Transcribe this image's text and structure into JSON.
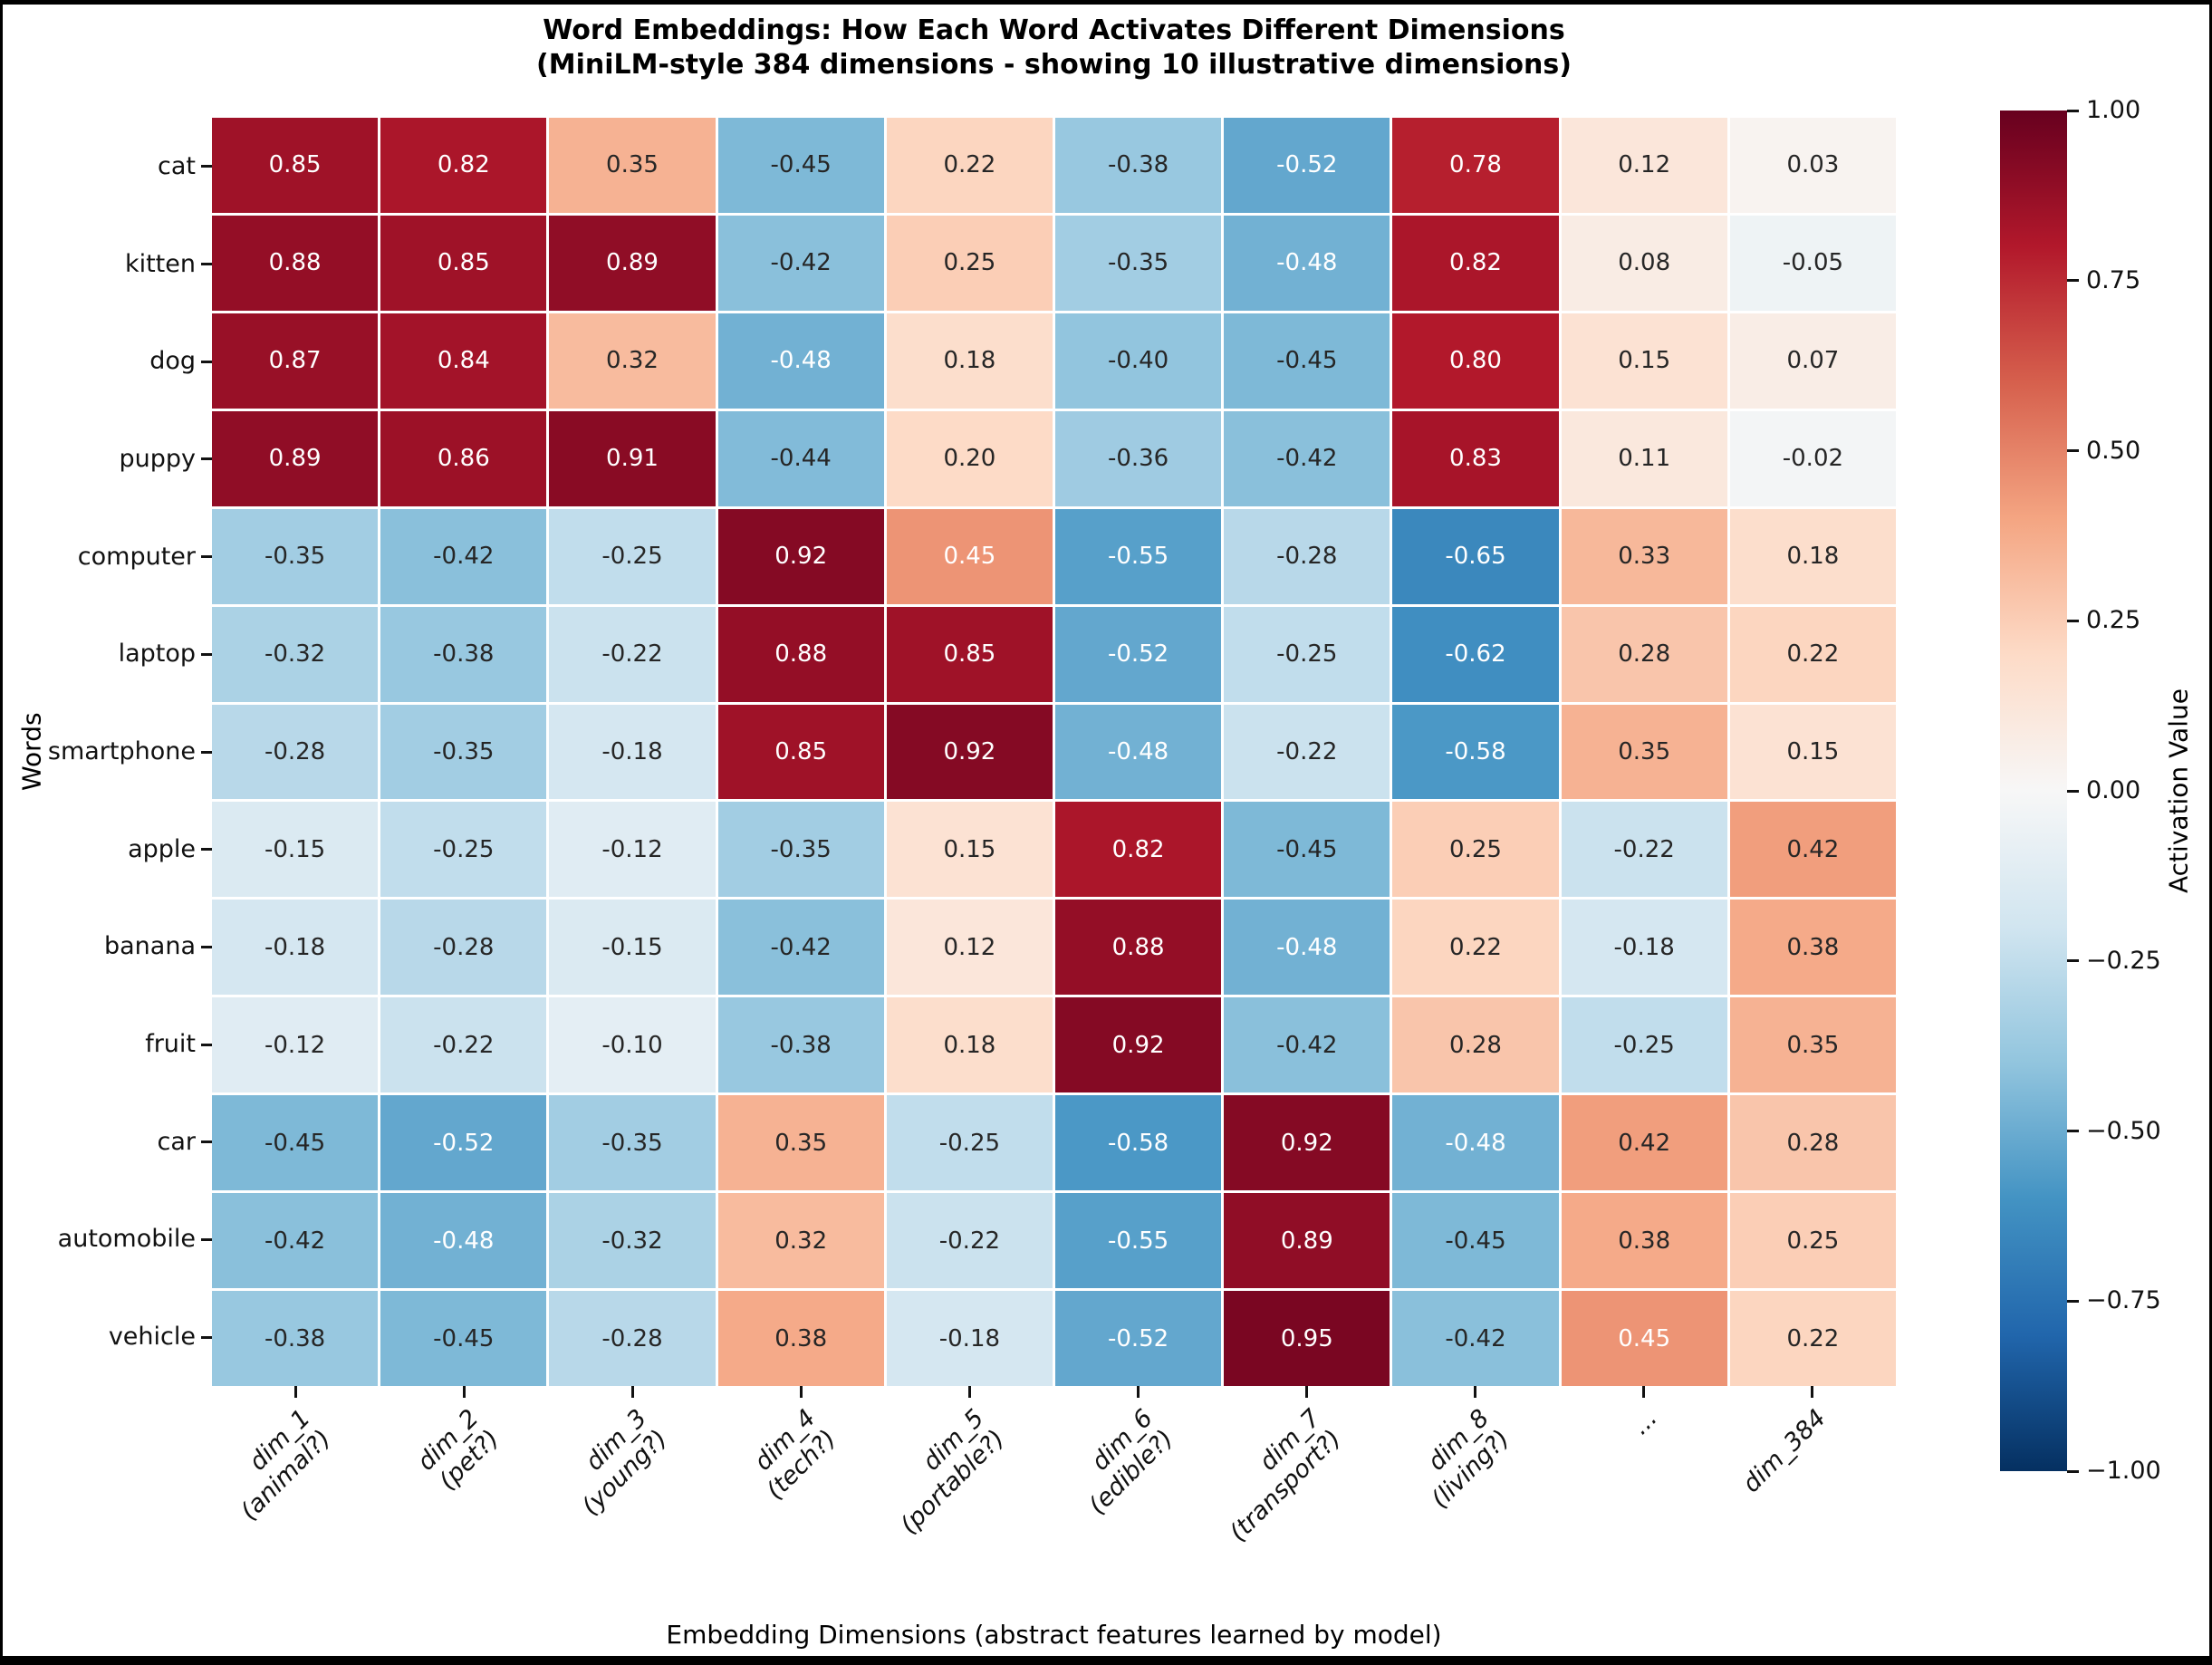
{
  "frame": {
    "background": "#000000",
    "figure_background": "#ffffff"
  },
  "chart_data": {
    "type": "heatmap",
    "title": "Word Embeddings: How Each Word Activates Different Dimensions",
    "subtitle": "(MiniLM-style 384 dimensions - showing 10 illustrative dimensions)",
    "xlabel": "Embedding Dimensions (abstract features learned by model)",
    "ylabel": "Words",
    "colormap": "RdBu_r",
    "vmin": -1.0,
    "vmax": 1.0,
    "grid": "white cell borders, no axes spines",
    "legend_position": "right colorbar",
    "rows": [
      "cat",
      "kitten",
      "dog",
      "puppy",
      "computer",
      "laptop",
      "smartphone",
      "apple",
      "banana",
      "fruit",
      "car",
      "automobile",
      "vehicle"
    ],
    "columns": [
      [
        "dim_1",
        "(animal?)"
      ],
      [
        "dim_2",
        "(pet?)"
      ],
      [
        "dim_3",
        "(young?)"
      ],
      [
        "dim_4",
        "(tech?)"
      ],
      [
        "dim_5",
        "(portable?)"
      ],
      [
        "dim_6",
        "(edible?)"
      ],
      [
        "dim_7",
        "(transport?)"
      ],
      [
        "dim_8",
        "(living?)"
      ],
      [
        "..."
      ],
      [
        "dim_384"
      ]
    ],
    "values": [
      [
        0.85,
        0.82,
        0.35,
        -0.45,
        0.22,
        -0.38,
        -0.52,
        0.78,
        0.12,
        0.03
      ],
      [
        0.88,
        0.85,
        0.89,
        -0.42,
        0.25,
        -0.35,
        -0.48,
        0.82,
        0.08,
        -0.05
      ],
      [
        0.87,
        0.84,
        0.32,
        -0.48,
        0.18,
        -0.4,
        -0.45,
        0.8,
        0.15,
        0.07
      ],
      [
        0.89,
        0.86,
        0.91,
        -0.44,
        0.2,
        -0.36,
        -0.42,
        0.83,
        0.11,
        -0.02
      ],
      [
        -0.35,
        -0.42,
        -0.25,
        0.92,
        0.45,
        -0.55,
        -0.28,
        -0.65,
        0.33,
        0.18
      ],
      [
        -0.32,
        -0.38,
        -0.22,
        0.88,
        0.85,
        -0.52,
        -0.25,
        -0.62,
        0.28,
        0.22
      ],
      [
        -0.28,
        -0.35,
        -0.18,
        0.85,
        0.92,
        -0.48,
        -0.22,
        -0.58,
        0.35,
        0.15
      ],
      [
        -0.15,
        -0.25,
        -0.12,
        -0.35,
        0.15,
        0.82,
        -0.45,
        0.25,
        -0.22,
        0.42
      ],
      [
        -0.18,
        -0.28,
        -0.15,
        -0.42,
        0.12,
        0.88,
        -0.48,
        0.22,
        -0.18,
        0.38
      ],
      [
        -0.12,
        -0.22,
        -0.1,
        -0.38,
        0.18,
        0.92,
        -0.42,
        0.28,
        -0.25,
        0.35
      ],
      [
        -0.45,
        -0.52,
        -0.35,
        0.35,
        -0.25,
        -0.58,
        0.92,
        -0.48,
        0.42,
        0.28
      ],
      [
        -0.42,
        -0.48,
        -0.32,
        0.32,
        -0.22,
        -0.55,
        0.89,
        -0.45,
        0.38,
        0.25
      ],
      [
        -0.38,
        -0.45,
        -0.28,
        0.38,
        -0.18,
        -0.52,
        0.95,
        -0.42,
        0.45,
        0.22
      ]
    ],
    "colorbar": {
      "label": "Activation Value",
      "ticks": [
        "1.00",
        "0.75",
        "0.50",
        "0.25",
        "0.00",
        "−0.25",
        "−0.50",
        "−0.75",
        "−1.00"
      ]
    },
    "annotation_colors": {
      "dark": "#262626",
      "light": "#ffffff"
    },
    "colors": {
      "positive_max": "#67001f",
      "zero": "#f7f7f7",
      "negative_max": "#053061",
      "frame": "#000000",
      "background": "#ffffff"
    }
  }
}
